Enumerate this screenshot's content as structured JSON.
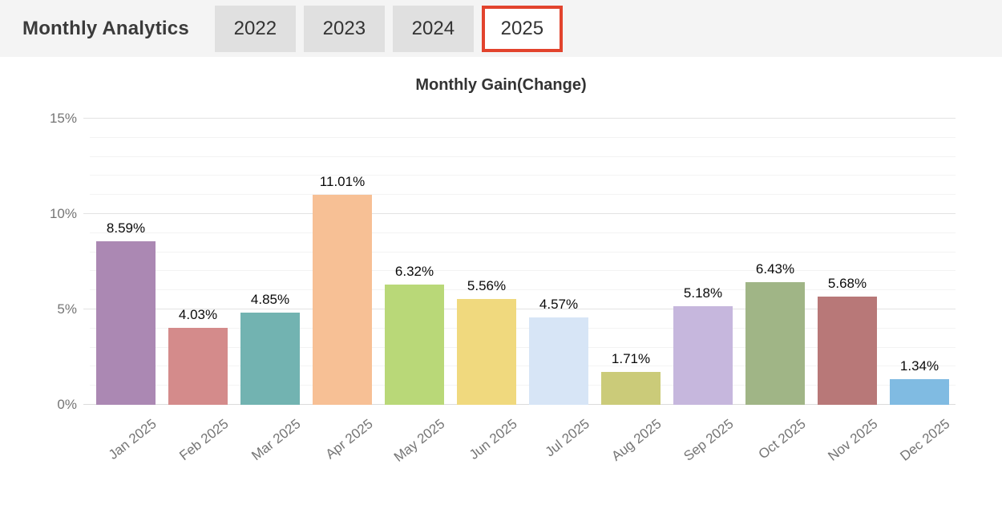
{
  "header": {
    "title": "Monthly Analytics",
    "tabs": [
      {
        "label": "2022",
        "active": false
      },
      {
        "label": "2023",
        "active": false
      },
      {
        "label": "2024",
        "active": false
      },
      {
        "label": "2025",
        "active": true
      }
    ],
    "active_tab_border_color": "#e2432d",
    "tab_background": "#e0e0e0",
    "bar_background": "#f4f4f4"
  },
  "chart_data": {
    "type": "bar",
    "title": "Monthly Gain(Change)",
    "categories": [
      "Jan 2025",
      "Feb 2025",
      "Mar 2025",
      "Apr 2025",
      "May 2025",
      "Jun 2025",
      "Jul 2025",
      "Aug 2025",
      "Sep 2025",
      "Oct 2025",
      "Nov 2025",
      "Dec 2025"
    ],
    "values": [
      8.59,
      4.03,
      4.85,
      11.01,
      6.32,
      5.56,
      4.57,
      1.71,
      5.18,
      6.43,
      5.68,
      1.34
    ],
    "value_labels": [
      "8.59%",
      "4.03%",
      "4.85%",
      "11.01%",
      "6.32%",
      "5.56%",
      "4.57%",
      "1.71%",
      "5.18%",
      "6.43%",
      "5.68%",
      "1.34%"
    ],
    "bar_colors": [
      "#ab88b3",
      "#d48b8b",
      "#72b3b1",
      "#f7c095",
      "#b9d878",
      "#f0d97e",
      "#d7e5f6",
      "#cbcb79",
      "#c6b7dd",
      "#a0b586",
      "#b87878",
      "#80bbe2"
    ],
    "xlabel": "",
    "ylabel": "",
    "ylim": [
      0,
      15
    ],
    "yticks": [
      {
        "value": 0,
        "label": "0%"
      },
      {
        "value": 5,
        "label": "5%"
      },
      {
        "value": 10,
        "label": "10%"
      },
      {
        "value": 15,
        "label": "15%"
      }
    ],
    "grid": {
      "horizontal": true,
      "minor_step": 1,
      "major_step": 5
    },
    "legend": "none",
    "x_tick_rotation_deg": -38
  }
}
